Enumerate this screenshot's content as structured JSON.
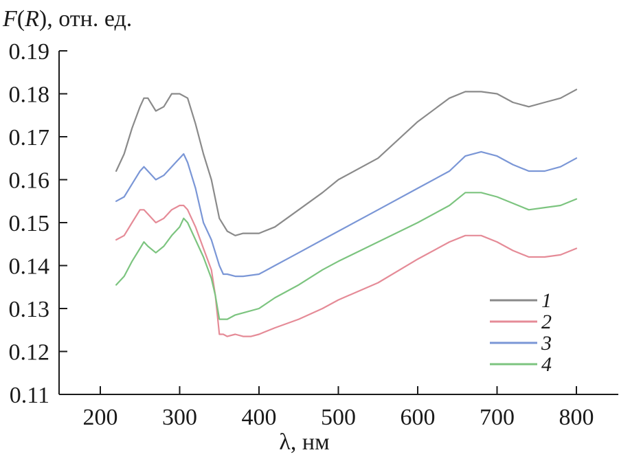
{
  "chart_data": {
    "type": "line",
    "title": "",
    "ylabel_prefix": "F",
    "ylabel_paren_open": "(",
    "ylabel_var": "R",
    "ylabel_suffix": "), отн. ед.",
    "xlabel": "λ, нм",
    "xlim": [
      150,
      850
    ],
    "ylim": [
      0.11,
      0.19
    ],
    "x_ticks": [
      200,
      300,
      400,
      500,
      600,
      700,
      800
    ],
    "x_tick_labels": [
      "200",
      "300",
      "400",
      "500",
      "600",
      "700",
      "800"
    ],
    "y_ticks": [
      0.11,
      0.12,
      0.13,
      0.14,
      0.15,
      0.16,
      0.17,
      0.18,
      0.19
    ],
    "y_tick_labels": [
      "0.11",
      "0.12",
      "0.13",
      "0.14",
      "0.15",
      "0.16",
      "0.17",
      "0.18",
      "0.19"
    ],
    "grid": false,
    "legend": "bottom-right",
    "colors": {
      "1": "#8a8a8a",
      "2": "#e58b97",
      "3": "#7a96d6",
      "4": "#7cc47f"
    },
    "series": [
      {
        "name": "1",
        "x": [
          220,
          230,
          240,
          250,
          255,
          260,
          270,
          280,
          290,
          300,
          310,
          320,
          330,
          340,
          350,
          360,
          370,
          380,
          390,
          400,
          420,
          450,
          480,
          500,
          550,
          600,
          640,
          660,
          680,
          700,
          720,
          740,
          760,
          780,
          800
        ],
        "values": [
          0.162,
          0.166,
          0.172,
          0.177,
          0.179,
          0.179,
          0.176,
          0.177,
          0.18,
          0.18,
          0.179,
          0.173,
          0.166,
          0.16,
          0.151,
          0.148,
          0.147,
          0.1475,
          0.1475,
          0.1475,
          0.149,
          0.153,
          0.157,
          0.16,
          0.165,
          0.1735,
          0.179,
          0.1805,
          0.1805,
          0.18,
          0.178,
          0.177,
          0.178,
          0.179,
          0.181
        ]
      },
      {
        "name": "2",
        "x": [
          220,
          230,
          240,
          250,
          255,
          260,
          270,
          280,
          290,
          300,
          305,
          310,
          320,
          330,
          340,
          345,
          350,
          355,
          360,
          370,
          380,
          390,
          400,
          420,
          450,
          480,
          500,
          550,
          600,
          640,
          660,
          680,
          700,
          720,
          740,
          760,
          780,
          800
        ],
        "values": [
          0.146,
          0.147,
          0.15,
          0.153,
          0.153,
          0.152,
          0.15,
          0.151,
          0.153,
          0.154,
          0.154,
          0.153,
          0.149,
          0.144,
          0.139,
          0.133,
          0.124,
          0.124,
          0.1235,
          0.124,
          0.1235,
          0.1235,
          0.124,
          0.1255,
          0.1275,
          0.13,
          0.132,
          0.136,
          0.1415,
          0.1455,
          0.147,
          0.147,
          0.1455,
          0.1435,
          0.142,
          0.142,
          0.1425,
          0.144
        ]
      },
      {
        "name": "3",
        "x": [
          220,
          230,
          240,
          250,
          255,
          260,
          270,
          280,
          290,
          300,
          305,
          310,
          320,
          330,
          340,
          350,
          355,
          360,
          370,
          380,
          400,
          420,
          450,
          480,
          500,
          550,
          600,
          640,
          660,
          680,
          700,
          720,
          740,
          760,
          780,
          800
        ],
        "values": [
          0.155,
          0.156,
          0.159,
          0.162,
          0.163,
          0.162,
          0.16,
          0.161,
          0.163,
          0.165,
          0.166,
          0.164,
          0.158,
          0.15,
          0.146,
          0.14,
          0.138,
          0.138,
          0.1375,
          0.1375,
          0.138,
          0.14,
          0.143,
          0.146,
          0.148,
          0.153,
          0.158,
          0.162,
          0.1655,
          0.1665,
          0.1655,
          0.1635,
          0.162,
          0.162,
          0.163,
          0.165
        ]
      },
      {
        "name": "4",
        "x": [
          220,
          230,
          240,
          250,
          255,
          260,
          270,
          280,
          290,
          300,
          305,
          310,
          320,
          330,
          340,
          345,
          350,
          355,
          360,
          370,
          380,
          400,
          420,
          450,
          480,
          500,
          550,
          600,
          640,
          660,
          680,
          700,
          720,
          740,
          760,
          780,
          800
        ],
        "values": [
          0.1355,
          0.1375,
          0.141,
          0.144,
          0.1455,
          0.1445,
          0.143,
          0.1445,
          0.147,
          0.149,
          0.151,
          0.15,
          0.146,
          0.142,
          0.137,
          0.133,
          0.1275,
          0.1275,
          0.1275,
          0.1285,
          0.129,
          0.13,
          0.1325,
          0.1355,
          0.139,
          0.141,
          0.1455,
          0.15,
          0.154,
          0.157,
          0.157,
          0.156,
          0.1545,
          0.153,
          0.1535,
          0.154,
          0.1555
        ]
      }
    ]
  }
}
